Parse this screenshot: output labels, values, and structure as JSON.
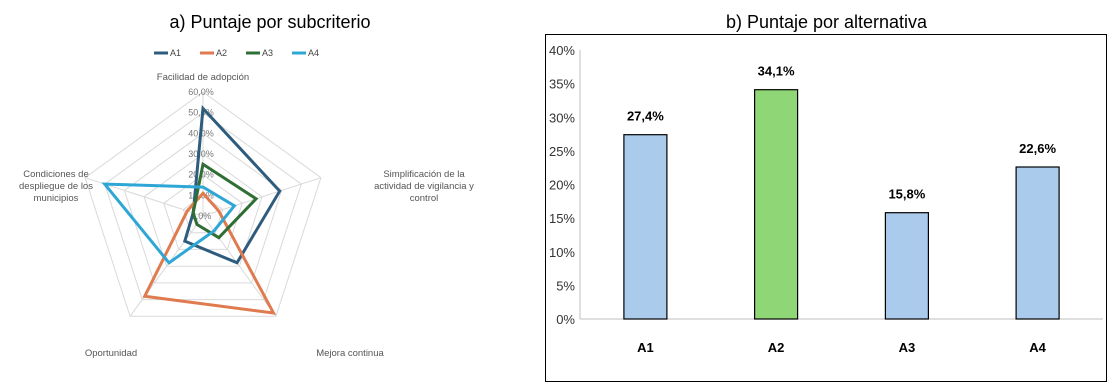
{
  "chart_data": [
    {
      "type": "radar",
      "title": "a) Puntaje por subcriterio",
      "axes": [
        "Facilidad de adopción",
        "Simplificación de la actividad de vigilancia y control",
        "Mejora continua",
        "Oportunidad",
        "Condiciones de despliegue de los municipios"
      ],
      "axis_label_lines": [
        [
          "Facilidad de adopción"
        ],
        [
          "Simplificación de la",
          "actividad de vigilancia y",
          "control"
        ],
        [
          "Mejora continua"
        ],
        [
          "Oportunidad"
        ],
        [
          "Condiciones de",
          "despliegue de los",
          "municipios"
        ]
      ],
      "radial_ticks": [
        "0,0%",
        "10,0%",
        "20,0%",
        "30,0%",
        "40,0%",
        "50,0%",
        "60,0%"
      ],
      "rlim": [
        0,
        60
      ],
      "legend_position": "top",
      "series": [
        {
          "name": "A1",
          "color": "#2e5c7e",
          "values": [
            52,
            39,
            28,
            15,
            5
          ]
        },
        {
          "name": "A2",
          "color": "#e07b4f",
          "values": [
            11,
            8,
            58,
            48,
            8
          ]
        },
        {
          "name": "A3",
          "color": "#2f6e34",
          "values": [
            25,
            27,
            13,
            5,
            5
          ]
        },
        {
          "name": "A4",
          "color": "#2fa7d6",
          "values": [
            14,
            16,
            9,
            28,
            50
          ]
        }
      ]
    },
    {
      "type": "bar",
      "title": "b) Puntaje por alternativa",
      "categories": [
        "A1",
        "A2",
        "A3",
        "A4"
      ],
      "values": [
        27.4,
        34.1,
        15.8,
        22.6
      ],
      "data_labels": [
        "27,4%",
        "34,1%",
        "15,8%",
        "22,6%"
      ],
      "bar_colors": [
        "#aacbec",
        "#8fd676",
        "#aacbec",
        "#aacbec"
      ],
      "bar_border": "#000000",
      "ylim": [
        0,
        40
      ],
      "yticks": [
        "0%",
        "5%",
        "10%",
        "15%",
        "20%",
        "25%",
        "30%",
        "35%",
        "40%"
      ],
      "grid": false,
      "border": true
    }
  ]
}
